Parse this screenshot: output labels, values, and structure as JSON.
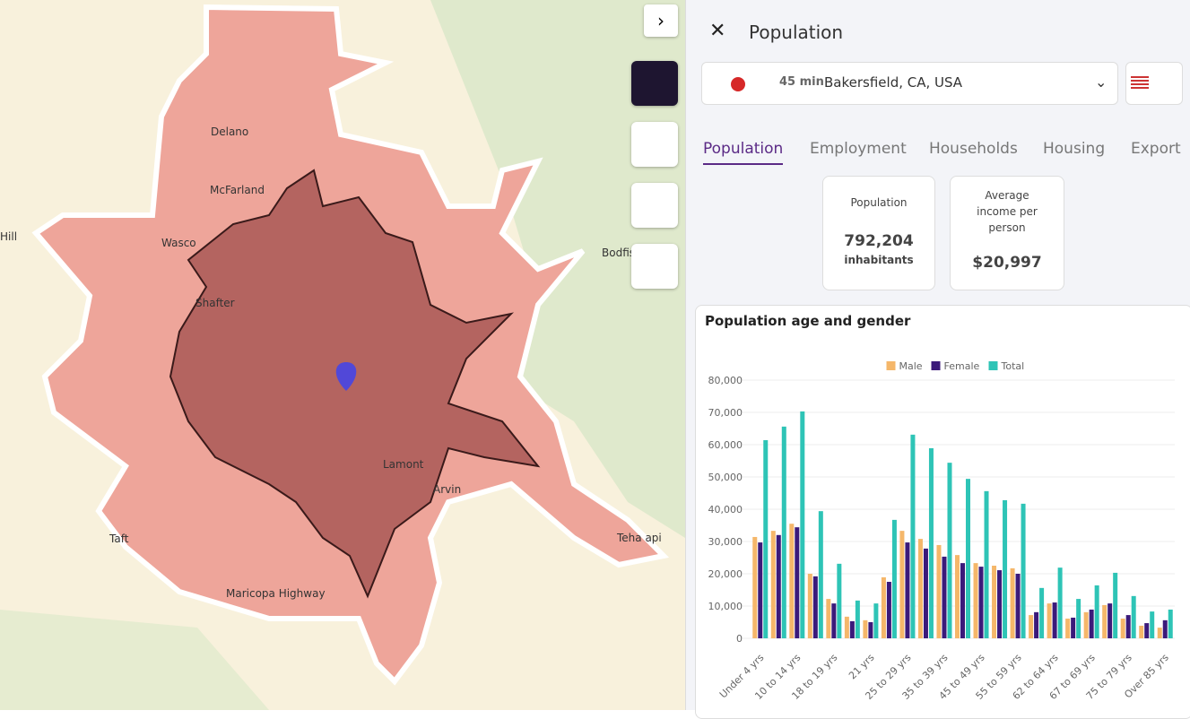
{
  "header": {
    "title": "Population"
  },
  "selector": {
    "duration": "45 min",
    "location": "Bakersfield, CA, USA"
  },
  "tabs": [
    "Population",
    "Employment",
    "Households",
    "Housing",
    "Export"
  ],
  "cards": [
    {
      "label": "Population",
      "value": "792,204",
      "unit": "inhabitants"
    },
    {
      "label": "Average income per person",
      "value": "$20,997"
    }
  ],
  "map": {
    "labels": [
      "Delano",
      "McFarland",
      "Wasco",
      "Shafter",
      "Lamont",
      "Arvin",
      "Taft",
      "Maricopa Highway",
      "Bodfis",
      "Teha  api",
      "Hill"
    ]
  },
  "chart_data": {
    "type": "bar",
    "title": "Population age and gender",
    "categories": [
      "Under 4 yrs",
      null,
      "10 to 14 yrs",
      null,
      "18 to 19 yrs",
      null,
      "21 yrs",
      null,
      "25 to 29 yrs",
      null,
      "35 to 39 yrs",
      null,
      "45 to 49 yrs",
      null,
      "55 to 59 yrs",
      null,
      "62 to 64 yrs",
      null,
      "67 to 69 yrs",
      null,
      "75 to 79 yrs",
      null,
      "Over 85 yrs"
    ],
    "series": [
      {
        "name": "Male",
        "color": "#f5b76a",
        "values": [
          31400,
          33300,
          35500,
          20000,
          12200,
          6700,
          5600,
          18900,
          33300,
          30800,
          28900,
          25800,
          23300,
          22500,
          21700,
          7200,
          10800,
          6100,
          8100,
          10300,
          6100,
          3900,
          3300
        ]
      },
      {
        "name": "Female",
        "color": "#3b1a7a",
        "values": [
          29700,
          32000,
          34400,
          19200,
          10800,
          5300,
          5000,
          17500,
          29700,
          27800,
          25300,
          23300,
          22200,
          21100,
          20000,
          8100,
          11100,
          6400,
          8900,
          10800,
          7200,
          4700,
          5600
        ]
      },
      {
        "name": "Total",
        "color": "#2ec4b6",
        "values": [
          61400,
          65600,
          70300,
          39400,
          23100,
          11700,
          10800,
          36700,
          63100,
          58900,
          54400,
          49400,
          45600,
          42800,
          41700,
          15600,
          21900,
          12200,
          16400,
          20300,
          13100,
          8300,
          8900
        ]
      }
    ],
    "ylim": [
      0,
      80000
    ],
    "yticks": [
      0,
      {
        "value": 10000,
        "label": "10,000"
      },
      {
        "value": 20000,
        "label": "20,000"
      },
      {
        "value": 30000,
        "label": "30,000"
      },
      {
        "value": 40000,
        "label": "40,000"
      },
      {
        "value": 50000,
        "label": "50,000"
      },
      {
        "value": 60000,
        "label": "60,000"
      },
      {
        "value": 70000,
        "label": "70,000"
      },
      {
        "value": 80000,
        "label": "80,000"
      }
    ],
    "grid": true,
    "legend": "top"
  }
}
